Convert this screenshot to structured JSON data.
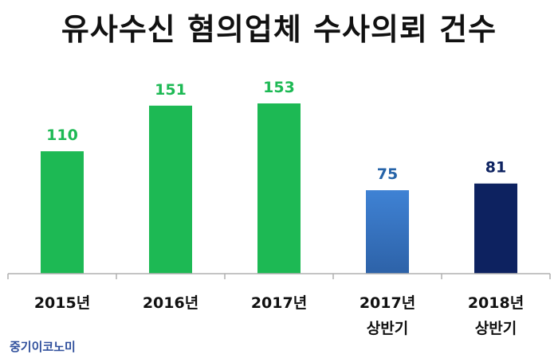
{
  "chart_data": {
    "type": "bar",
    "title": "유사수신 혐의업체 수사의뢰 건수",
    "categories": [
      [
        "2015년"
      ],
      [
        "2016년"
      ],
      [
        "2017년"
      ],
      [
        "2017년",
        "상반기"
      ],
      [
        "2018년",
        "상반기"
      ]
    ],
    "values": [
      110,
      151,
      153,
      75,
      81
    ],
    "bar_colors": [
      "#1db954",
      "#1db954",
      "#1db954",
      "#3a78c8",
      "#0d2260"
    ],
    "value_label_colors": [
      "#1db954",
      "#1db954",
      "#1db954",
      "#2563a8",
      "#0d2260"
    ],
    "ylim": [
      0,
      175
    ],
    "grid": false,
    "xlabel": "",
    "ylabel": ""
  },
  "source": "중기이코노미"
}
